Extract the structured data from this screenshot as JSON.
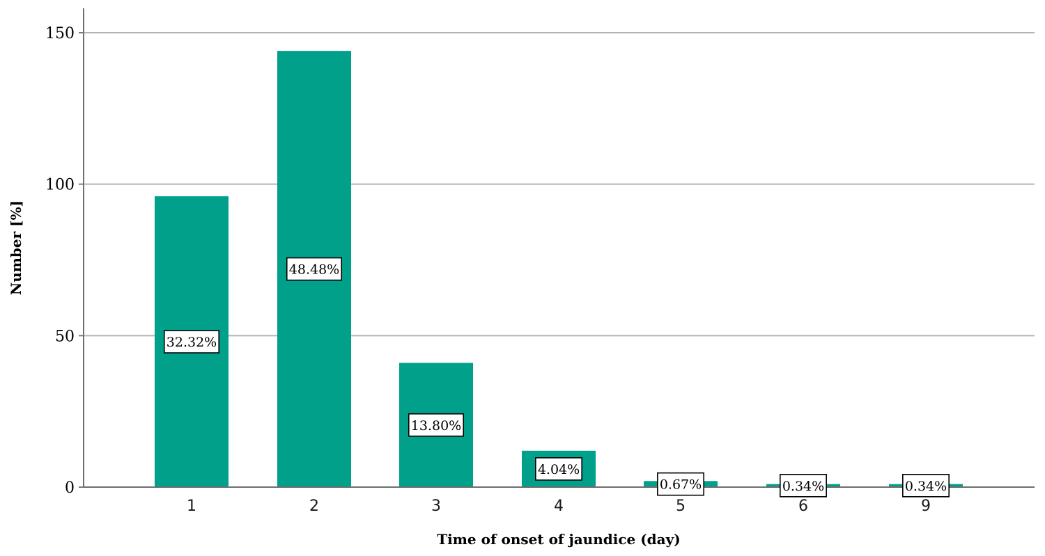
{
  "chart_data": {
    "type": "bar",
    "xlabel": "Time of onset of jaundice (day)",
    "ylabel": "Number [%]",
    "categories": [
      "1",
      "2",
      "3",
      "4",
      "5",
      "6",
      "9"
    ],
    "values": [
      96,
      144,
      41,
      12,
      2,
      1,
      1
    ],
    "data_labels": [
      "32.32%",
      "48.48%",
      "13.80%",
      "4.04%",
      "0.67%",
      "0.34%",
      "0.34%"
    ],
    "y_ticks": [
      "0",
      "50",
      "100",
      "150"
    ],
    "ylim": [
      0,
      158
    ],
    "grid": true,
    "bar_color": "#00A08B"
  }
}
